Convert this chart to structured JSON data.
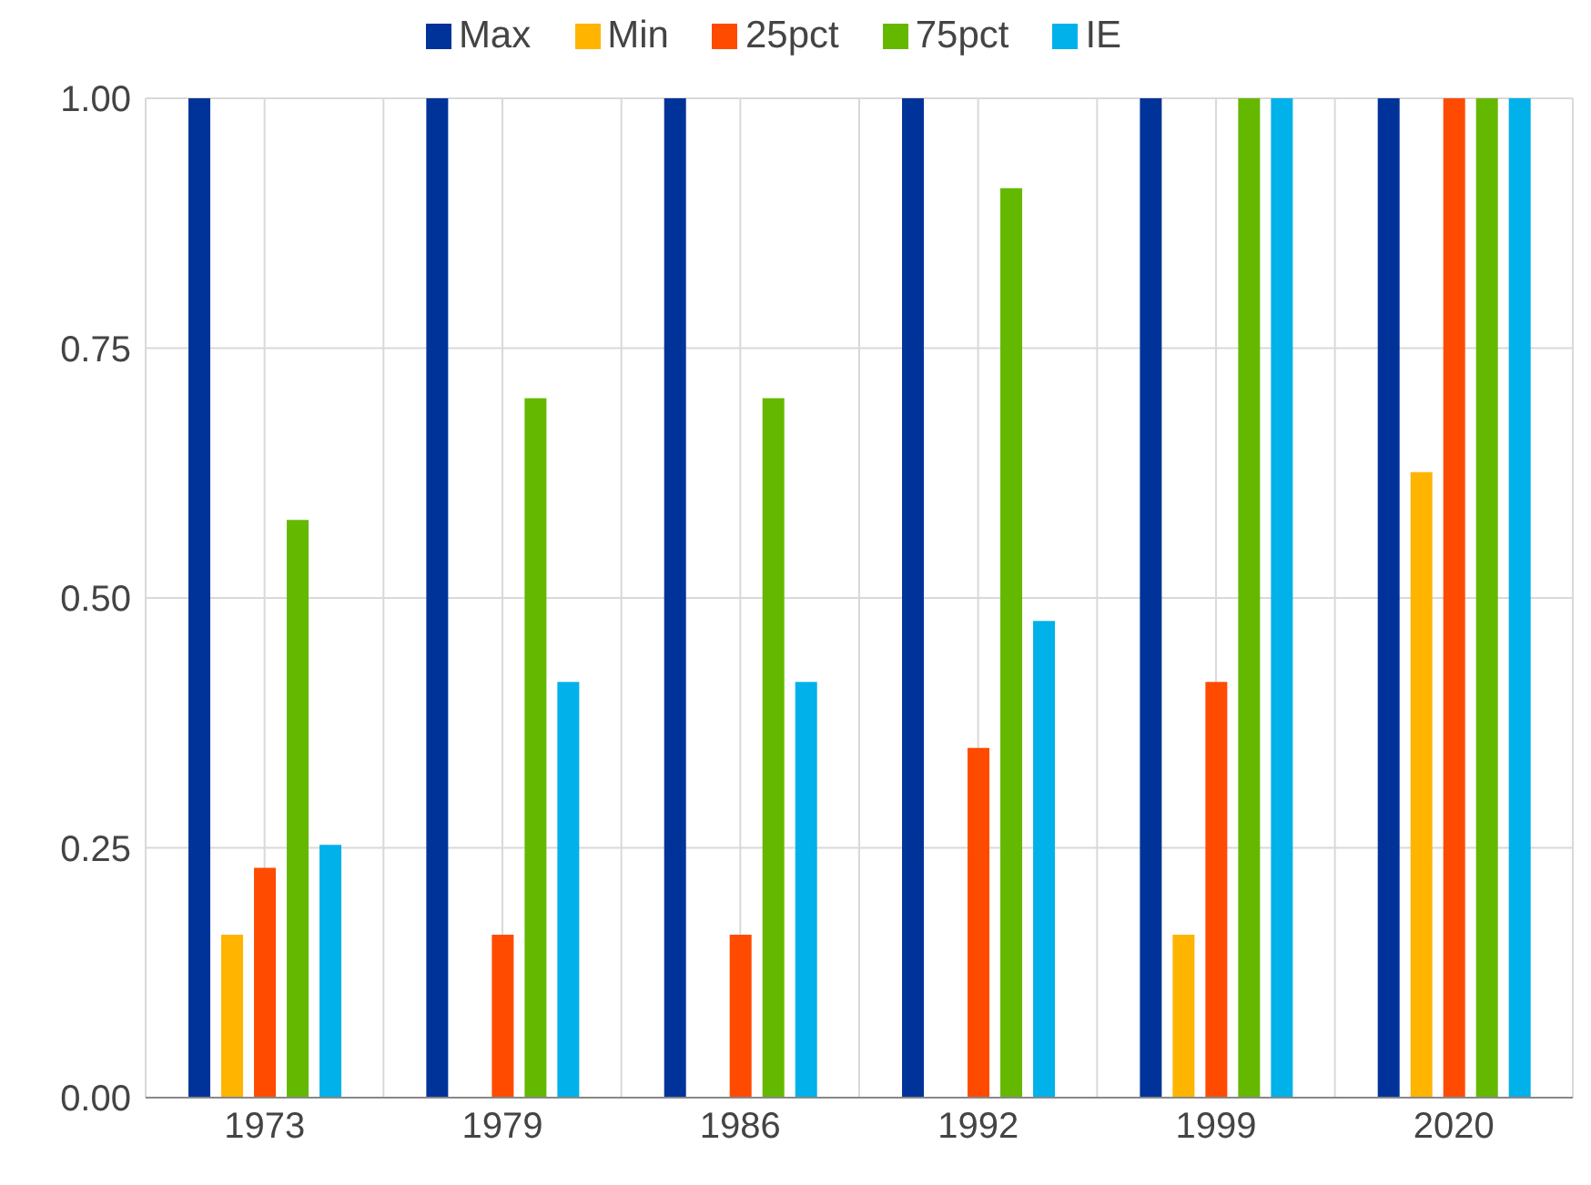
{
  "chart_data": {
    "type": "bar",
    "categories": [
      "1973",
      "1979",
      "1986",
      "1992",
      "1999",
      "2020"
    ],
    "series": [
      {
        "name": "Max",
        "color": "#003399",
        "values": [
          1,
          1,
          1,
          1,
          1,
          1
        ]
      },
      {
        "name": "Min",
        "color": "#ffb400",
        "values": [
          0.163,
          null,
          null,
          null,
          0.163,
          0.626
        ]
      },
      {
        "name": "25pct",
        "color": "#ff4b00",
        "values": [
          0.23,
          0.163,
          0.163,
          0.35,
          0.416,
          1
        ]
      },
      {
        "name": "75pct",
        "color": "#65b800",
        "values": [
          0.578,
          0.7,
          0.7,
          0.91,
          1,
          1
        ]
      },
      {
        "name": "IE",
        "color": "#00b1ea",
        "values": [
          0.253,
          0.416,
          0.416,
          0.477,
          1,
          1
        ]
      }
    ],
    "ylim": [
      0,
      1
    ],
    "yticks": [
      {
        "value": 0,
        "label": "0.00"
      },
      {
        "value": 0.25,
        "label": "0.25"
      },
      {
        "value": 0.5,
        "label": "0.50"
      },
      {
        "value": 0.75,
        "label": "0.75"
      },
      {
        "value": 1,
        "label": "1.00"
      }
    ],
    "grid": true,
    "legend": "top"
  }
}
